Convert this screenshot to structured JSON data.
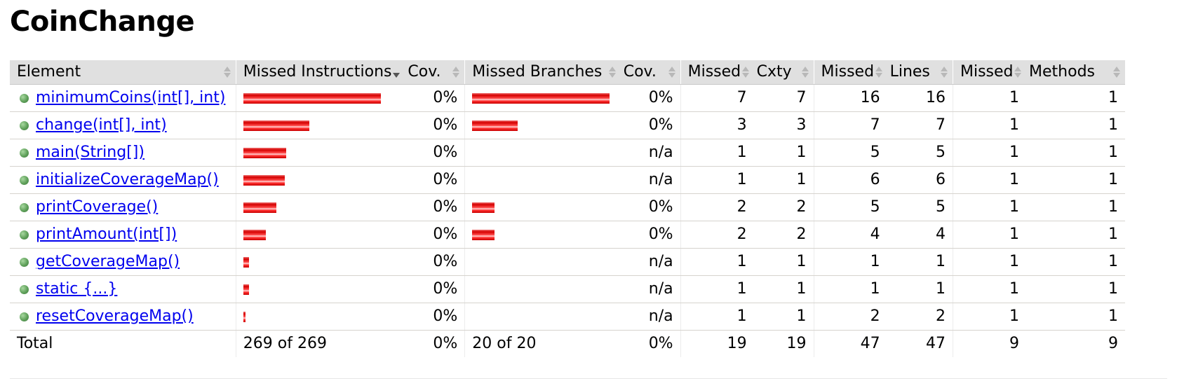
{
  "title": "CoinChange",
  "headers": {
    "element": "Element",
    "missed_instructions": "Missed Instructions",
    "instr_cov": "Cov.",
    "missed_branches": "Missed Branches",
    "branch_cov": "Cov.",
    "missed_cxty": "Missed",
    "cxty": "Cxty",
    "missed_lines": "Missed",
    "lines": "Lines",
    "missed_methods": "Missed",
    "methods": "Methods"
  },
  "rows": [
    {
      "name": "minimumCoins(int[], int)",
      "instr_bar": 1.0,
      "instr_cov": "0%",
      "branch_bar": 1.0,
      "branch_cov": "0%",
      "missed_cxty": "7",
      "cxty": "7",
      "missed_lines": "16",
      "lines": "16",
      "missed_methods": "1",
      "methods": "1"
    },
    {
      "name": "change(int[], int)",
      "instr_bar": 0.48,
      "instr_cov": "0%",
      "branch_bar": 0.33,
      "branch_cov": "0%",
      "missed_cxty": "3",
      "cxty": "3",
      "missed_lines": "7",
      "lines": "7",
      "missed_methods": "1",
      "methods": "1"
    },
    {
      "name": "main(String[])",
      "instr_bar": 0.31,
      "instr_cov": "0%",
      "branch_bar": 0,
      "branch_cov": "n/a",
      "missed_cxty": "1",
      "cxty": "1",
      "missed_lines": "5",
      "lines": "5",
      "missed_methods": "1",
      "methods": "1"
    },
    {
      "name": "initializeCoverageMap()",
      "instr_bar": 0.3,
      "instr_cov": "0%",
      "branch_bar": 0,
      "branch_cov": "n/a",
      "missed_cxty": "1",
      "cxty": "1",
      "missed_lines": "6",
      "lines": "6",
      "missed_methods": "1",
      "methods": "1"
    },
    {
      "name": "printCoverage()",
      "instr_bar": 0.24,
      "instr_cov": "0%",
      "branch_bar": 0.165,
      "branch_cov": "0%",
      "missed_cxty": "2",
      "cxty": "2",
      "missed_lines": "5",
      "lines": "5",
      "missed_methods": "1",
      "methods": "1"
    },
    {
      "name": "printAmount(int[])",
      "instr_bar": 0.165,
      "instr_cov": "0%",
      "branch_bar": 0.165,
      "branch_cov": "0%",
      "missed_cxty": "2",
      "cxty": "2",
      "missed_lines": "4",
      "lines": "4",
      "missed_methods": "1",
      "methods": "1"
    },
    {
      "name": "getCoverageMap()",
      "instr_bar": 0.04,
      "instr_cov": "0%",
      "branch_bar": 0,
      "branch_cov": "n/a",
      "missed_cxty": "1",
      "cxty": "1",
      "missed_lines": "1",
      "lines": "1",
      "missed_methods": "1",
      "methods": "1"
    },
    {
      "name": "static {...}",
      "instr_bar": 0.04,
      "instr_cov": "0%",
      "branch_bar": 0,
      "branch_cov": "n/a",
      "missed_cxty": "1",
      "cxty": "1",
      "missed_lines": "1",
      "lines": "1",
      "missed_methods": "1",
      "methods": "1"
    },
    {
      "name": "resetCoverageMap()",
      "instr_bar": 0.015,
      "instr_cov": "0%",
      "branch_bar": 0,
      "branch_cov": "n/a",
      "missed_cxty": "1",
      "cxty": "1",
      "missed_lines": "2",
      "lines": "2",
      "missed_methods": "1",
      "methods": "1"
    }
  ],
  "total": {
    "label": "Total",
    "missed_instructions": "269 of 269",
    "instr_cov": "0%",
    "missed_branches": "20 of 20",
    "branch_cov": "0%",
    "missed_cxty": "19",
    "cxty": "19",
    "missed_lines": "47",
    "lines": "47",
    "missed_methods": "9",
    "methods": "9"
  },
  "colors": {
    "missed_bar": "#ff0000",
    "header_bg": "#e0e0e0",
    "link": "#0000ee",
    "method_icon": "#5fa05a"
  },
  "icons": {
    "method": "green-dot-method-icon",
    "sort": "sort-arrows-icon"
  }
}
